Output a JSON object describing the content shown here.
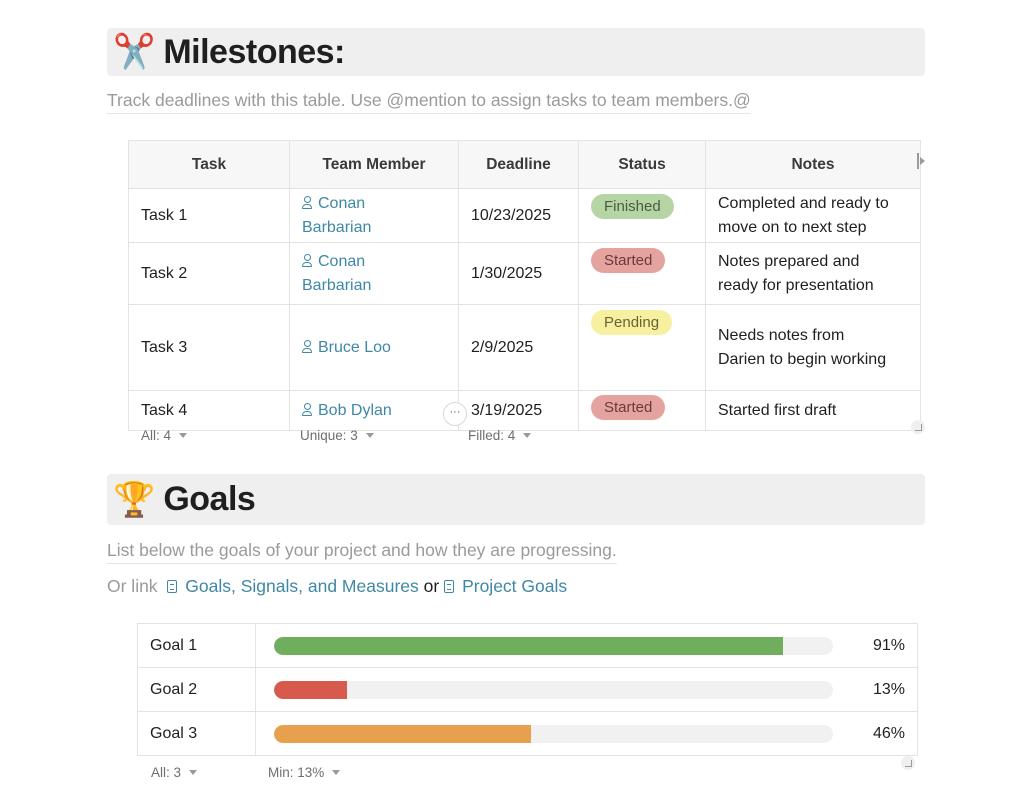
{
  "milestones": {
    "emoji": "✂️",
    "title": "Milestones:",
    "hint": "Track deadlines with this table. Use @mention to assign tasks to team members.@",
    "columns": [
      "Task",
      "Team Member",
      "Deadline",
      "Status",
      "Notes"
    ],
    "rows": [
      {
        "task": "Task 1",
        "member_line1": "Conan",
        "member_line2": "Barbarian",
        "deadline": "10/23/2025",
        "status": "Finished",
        "notes_line1": "Completed and ready to",
        "notes_line2": "move on to next step"
      },
      {
        "task": "Task 2",
        "member_line1": "Conan",
        "member_line2": "Barbarian",
        "deadline": "1/30/2025",
        "status": "Started",
        "notes_line1": "Notes prepared and",
        "notes_line2": "ready for presentation"
      },
      {
        "task": "Task 3",
        "member_line1": "Bruce Loo",
        "member_line2": "",
        "deadline": "2/9/2025",
        "status": "Pending",
        "notes_line1": "Needs notes from",
        "notes_line2": "Darien to begin working"
      },
      {
        "task": "Task 4",
        "member_line1": "Bob Dylan",
        "member_line2": "",
        "deadline": "3/19/2025",
        "status": "Started",
        "notes_line1": "Started first draft",
        "notes_line2": ""
      }
    ],
    "footer": {
      "all": "All: 4",
      "unique": "Unique: 3",
      "filled": "Filled: 4"
    },
    "more_label": "···"
  },
  "goals": {
    "emoji": "🏆",
    "title": "Goals",
    "hint": "List below the goals of your project and how they are progressing.",
    "or_prefix": "Or link",
    "link1": "Goals, Signals, and Measures",
    "or_word": "or",
    "link2": "Project Goals",
    "rows": [
      {
        "name": "Goal 1",
        "progress": 0.91,
        "pct_label": "91%",
        "color": "#6fae5d"
      },
      {
        "name": "Goal 2",
        "progress": 0.13,
        "pct_label": "13%",
        "color": "#d65b4c"
      },
      {
        "name": "Goal 3",
        "progress": 0.46,
        "pct_label": "46%",
        "color": "#e6a04e"
      }
    ],
    "footer": {
      "all": "All: 3",
      "min": "Min: 13%"
    }
  }
}
